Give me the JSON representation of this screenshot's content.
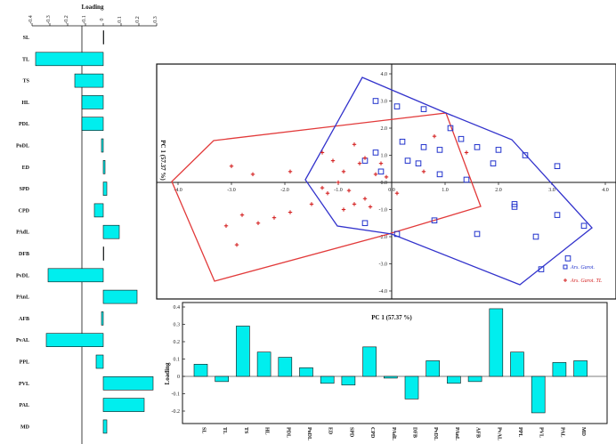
{
  "chart_data": [
    {
      "type": "bar",
      "orientation": "horizontal",
      "xlabel": "Loading",
      "xticks": [
        "-0.4",
        "-0.3",
        "-0.2",
        "-0.1",
        "0",
        "0.1",
        "0.2",
        "0.3"
      ],
      "xlim": [
        -0.4,
        0.3
      ],
      "categories": [
        "SL",
        "TL",
        "TS",
        "HL",
        "PDL",
        "PoDL",
        "ED",
        "SPD",
        "CPD",
        "PAdL",
        "DFB",
        "PvDL",
        "PAnL",
        "AFB",
        "PvAL",
        "PPL",
        "PVL",
        "PAL",
        "MD"
      ],
      "values": [
        0.0,
        -0.38,
        -0.16,
        -0.12,
        -0.12,
        -0.01,
        0.01,
        0.02,
        -0.05,
        0.09,
        0.0,
        -0.31,
        0.19,
        -0.01,
        -0.32,
        -0.04,
        0.28,
        0.23,
        0.02
      ]
    },
    {
      "type": "scatter",
      "xlabel": "",
      "ylabel": "PC 1 (57.37 %)",
      "xlim": [
        -4.1,
        4.1
      ],
      "ylim": [
        -4.1,
        4.1
      ],
      "xticks": [
        "-4.0",
        "-3.0",
        "-2.0",
        "-1.0",
        "0.0",
        "1.0",
        "2.0",
        "3.0",
        "4.0"
      ],
      "yticks": [
        "4.0",
        "3.0",
        "2.0",
        "1.0",
        "0.0",
        "-1.0",
        "-2.0",
        "-3.0",
        "-4.0"
      ],
      "grid": false,
      "legend_position": "bottom-right",
      "series": [
        {
          "name": "Ars. Garot. ",
          "marker": "open-square",
          "color": "#2233cc",
          "points": [
            [
              -0.3,
              3.0
            ],
            [
              0.1,
              2.8
            ],
            [
              0.6,
              2.7
            ],
            [
              1.1,
              2.0
            ],
            [
              1.3,
              1.6
            ],
            [
              0.2,
              1.5
            ],
            [
              0.6,
              1.3
            ],
            [
              0.9,
              1.2
            ],
            [
              1.6,
              1.3
            ],
            [
              2.0,
              1.2
            ],
            [
              2.5,
              1.0
            ],
            [
              3.1,
              0.6
            ],
            [
              1.9,
              0.7
            ],
            [
              0.3,
              0.8
            ],
            [
              0.5,
              0.7
            ],
            [
              -0.3,
              1.1
            ],
            [
              -0.5,
              0.8
            ],
            [
              0.9,
              0.3
            ],
            [
              1.4,
              0.1
            ],
            [
              2.3,
              -0.9
            ],
            [
              3.1,
              -1.2
            ],
            [
              3.6,
              -1.6
            ],
            [
              0.8,
              -1.4
            ],
            [
              1.6,
              -1.9
            ],
            [
              2.7,
              -2.0
            ],
            [
              0.1,
              -1.9
            ],
            [
              -0.5,
              -1.5
            ],
            [
              2.8,
              -3.2
            ],
            [
              3.3,
              -2.8
            ],
            [
              2.3,
              -0.8
            ],
            [
              -0.2,
              0.4
            ]
          ]
        },
        {
          "name": "Ars. Garot. TL",
          "marker": "plus",
          "color": "#d42222",
          "points": [
            [
              -3.0,
              0.6
            ],
            [
              -1.9,
              0.4
            ],
            [
              -1.3,
              1.1
            ],
            [
              -1.1,
              0.8
            ],
            [
              -0.9,
              0.4
            ],
            [
              -0.7,
              1.4
            ],
            [
              -0.6,
              0.7
            ],
            [
              -0.5,
              0.9
            ],
            [
              -0.3,
              0.3
            ],
            [
              -0.2,
              0.7
            ],
            [
              -1.0,
              0.0
            ],
            [
              -0.8,
              -0.3
            ],
            [
              -0.5,
              -0.6
            ],
            [
              -0.7,
              -0.8
            ],
            [
              -0.4,
              -0.9
            ],
            [
              -1.2,
              -0.4
            ],
            [
              -1.5,
              -0.8
            ],
            [
              -2.2,
              -1.3
            ],
            [
              -2.5,
              -1.5
            ],
            [
              -2.8,
              -1.2
            ],
            [
              -2.9,
              -2.3
            ],
            [
              -1.9,
              -1.1
            ],
            [
              -3.1,
              -1.6
            ],
            [
              -0.1,
              0.2
            ],
            [
              0.6,
              0.4
            ],
            [
              0.8,
              1.7
            ],
            [
              1.4,
              1.1
            ],
            [
              0.1,
              -0.4
            ],
            [
              -1.3,
              -0.2
            ],
            [
              -0.9,
              -1.0
            ],
            [
              -2.6,
              0.3
            ]
          ]
        }
      ]
    },
    {
      "type": "bar",
      "xlabel": "PC 1 (57.37 %)",
      "ylabel": "Loading",
      "yticks": [
        "0.4",
        "0.3",
        "0.2",
        "0.1",
        "0",
        "-0.1",
        "-0.2"
      ],
      "ylim": [
        -0.23,
        0.4
      ],
      "categories": [
        "SL",
        "TL",
        "TS",
        "HL",
        "PDL",
        "PoDL",
        "ED",
        "SPD",
        "CPD",
        "PAdL",
        "DFB",
        "PvDL",
        "PAnL",
        "AFB",
        "PvAL",
        "PPL",
        "PVL",
        "PAL",
        "MD"
      ],
      "values": [
        0.07,
        -0.03,
        0.29,
        0.14,
        0.11,
        0.05,
        -0.04,
        -0.05,
        0.17,
        -0.01,
        -0.13,
        0.09,
        -0.04,
        -0.03,
        0.39,
        0.14,
        -0.21,
        0.08,
        0.09
      ]
    }
  ]
}
